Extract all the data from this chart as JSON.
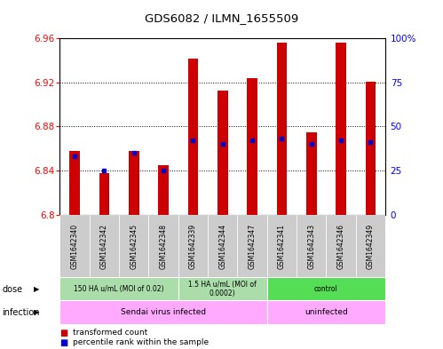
{
  "title": "GDS6082 / ILMN_1655509",
  "samples": [
    "GSM1642340",
    "GSM1642342",
    "GSM1642345",
    "GSM1642348",
    "GSM1642339",
    "GSM1642344",
    "GSM1642347",
    "GSM1642341",
    "GSM1642343",
    "GSM1642346",
    "GSM1642349"
  ],
  "transformed_counts": [
    6.858,
    6.838,
    6.858,
    6.845,
    6.942,
    6.913,
    6.924,
    6.956,
    6.875,
    6.956,
    6.921
  ],
  "percentile_ranks": [
    33,
    25,
    35,
    25,
    42,
    40,
    42,
    43,
    40,
    42,
    41
  ],
  "ymin": 6.8,
  "ymax": 6.96,
  "yticks": [
    6.8,
    6.84,
    6.88,
    6.92,
    6.96
  ],
  "right_yticks": [
    0,
    25,
    50,
    75,
    100
  ],
  "bar_color": "#cc0000",
  "blue_color": "#0000cc",
  "dose_groups": [
    {
      "label": "150 HA u/mL (MOI of 0.02)",
      "start": 0,
      "end": 4,
      "color": "#aaddaa"
    },
    {
      "label": "1.5 HA u/mL (MOI of\n0.0002)",
      "start": 4,
      "end": 7,
      "color": "#aaddaa"
    },
    {
      "label": "control",
      "start": 7,
      "end": 11,
      "color": "#55dd55"
    }
  ],
  "infection_groups": [
    {
      "label": "Sendai virus infected",
      "start": 0,
      "end": 7,
      "color": "#ffaaff"
    },
    {
      "label": "uninfected",
      "start": 7,
      "end": 11,
      "color": "#ffaaff"
    }
  ],
  "background_color": "#ffffff",
  "bar_width": 0.35,
  "gray_bg": "#cccccc"
}
